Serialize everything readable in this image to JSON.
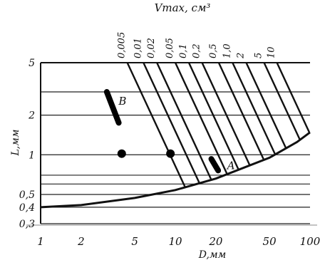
{
  "chart_data": {
    "type": "line",
    "title": "Vmax, см³",
    "xlabel": "D,мм",
    "ylabel": "L,мм",
    "x_scale": "log",
    "y_scale": "log",
    "xlim": [
      1,
      100
    ],
    "ylim": [
      0.3,
      5
    ],
    "grid": true,
    "x_ticks": [
      {
        "value": 1,
        "label": "1"
      },
      {
        "value": 2,
        "label": "2"
      },
      {
        "value": 5,
        "label": "5"
      },
      {
        "value": 10,
        "label": "10"
      },
      {
        "value": 20,
        "label": "20"
      },
      {
        "value": 50,
        "label": "50"
      },
      {
        "value": 100,
        "label": "100"
      }
    ],
    "y_ticks": [
      {
        "value": 0.3,
        "label": "0,3"
      },
      {
        "value": 0.4,
        "label": "0,4"
      },
      {
        "value": 0.5,
        "label": "0,5"
      },
      {
        "value": 1,
        "label": "1"
      },
      {
        "value": 2,
        "label": "2"
      },
      {
        "value": 5,
        "label": "5"
      }
    ],
    "y_grid_extra": [
      3,
      0.7,
      0.6
    ],
    "volume_lines": [
      {
        "label": "0,005",
        "x_top": 4.4
      },
      {
        "label": "0,01",
        "x_top": 5.8
      },
      {
        "label": "0,02",
        "x_top": 7.3
      },
      {
        "label": "0,05",
        "x_top": 10
      },
      {
        "label": "0,1",
        "x_top": 12.6
      },
      {
        "label": "0,2",
        "x_top": 15.8
      },
      {
        "label": "0,5",
        "x_top": 21
      },
      {
        "label": "1,0",
        "x_top": 26.6
      },
      {
        "label": "2",
        "x_top": 33.6
      },
      {
        "label": "5",
        "x_top": 45.6
      },
      {
        "label": "10",
        "x_top": 56.8
      }
    ],
    "volume_line_slope_log": -2.2,
    "boundary_curve": [
      {
        "x": 1,
        "y": 0.4
      },
      {
        "x": 2,
        "y": 0.415
      },
      {
        "x": 5,
        "y": 0.47
      },
      {
        "x": 10,
        "y": 0.54
      },
      {
        "x": 20,
        "y": 0.66
      },
      {
        "x": 50,
        "y": 0.95
      },
      {
        "x": 80,
        "y": 1.25
      },
      {
        "x": 100,
        "y": 1.48
      }
    ],
    "segments": [
      {
        "label": "B",
        "from": {
          "x": 3.1,
          "y": 3.0
        },
        "to": {
          "x": 3.8,
          "y": 1.75
        }
      },
      {
        "label": "A",
        "from": {
          "x": 18.5,
          "y": 0.93
        },
        "to": {
          "x": 20.8,
          "y": 0.76
        }
      }
    ],
    "points": [
      {
        "x": 4.0,
        "y": 1.02
      },
      {
        "x": 9.2,
        "y": 1.02
      }
    ]
  }
}
